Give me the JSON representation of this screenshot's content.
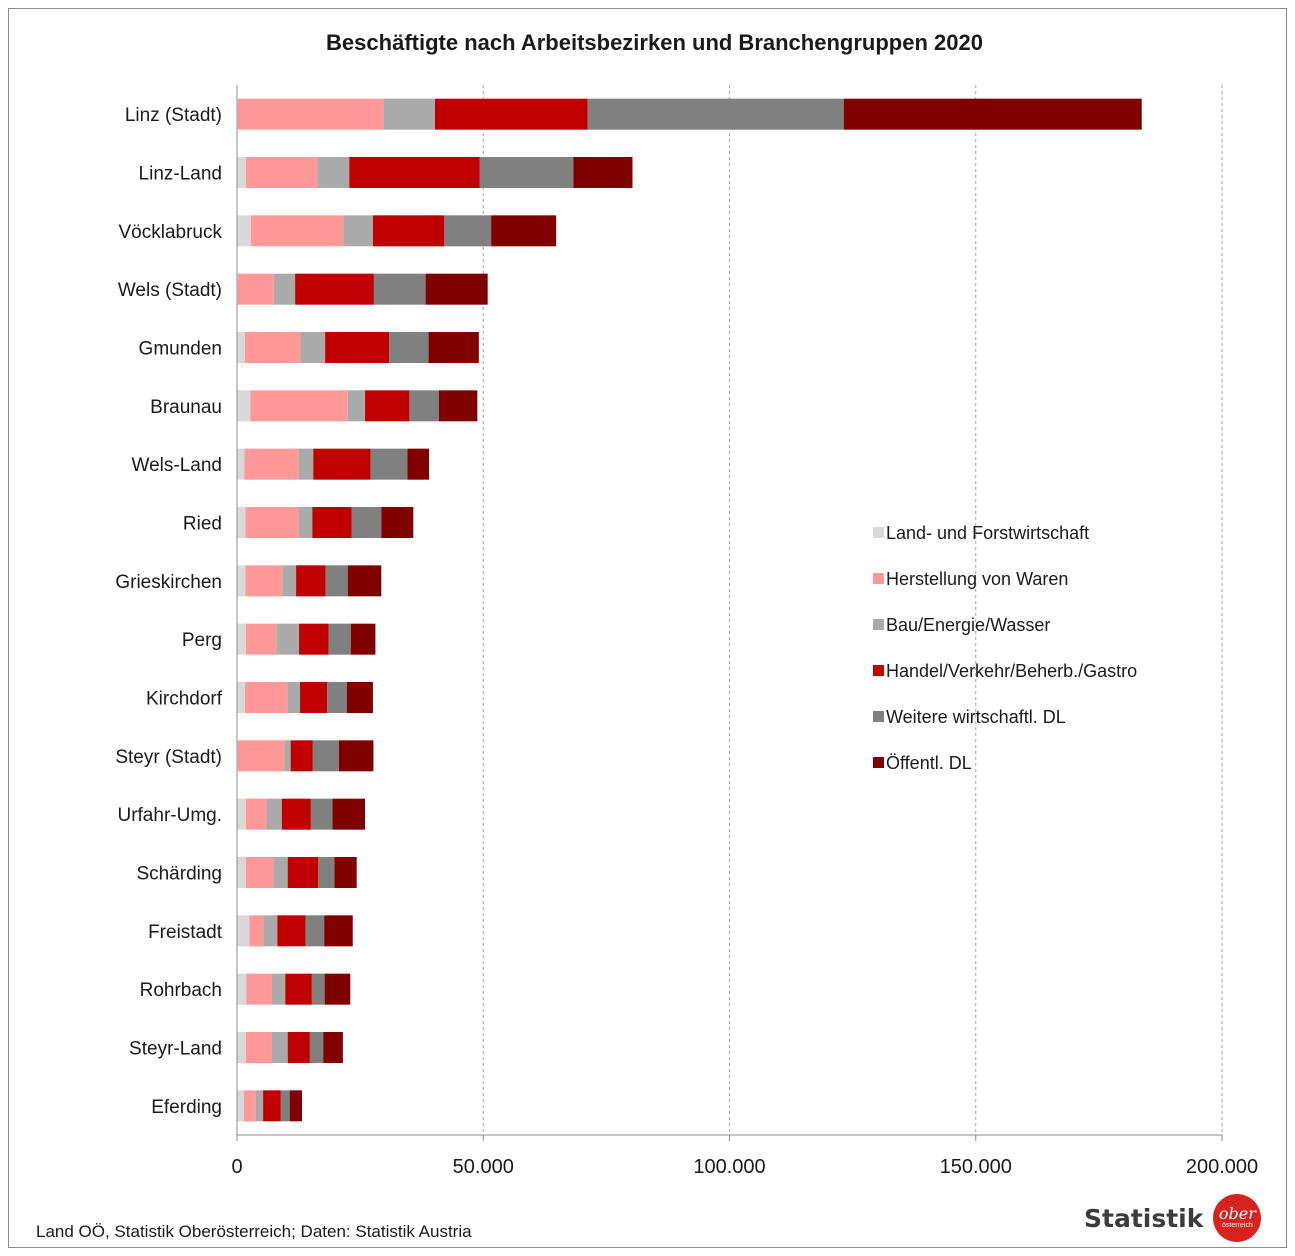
{
  "chart_data": {
    "type": "bar",
    "orientation": "horizontal",
    "stacked": true,
    "title": "Beschäftigte nach Arbeitsbezirken und Branchengruppen 2020",
    "xlabel": "",
    "ylabel": "",
    "xlim": [
      0,
      200000
    ],
    "xticks": [
      0,
      50000,
      100000,
      150000,
      200000
    ],
    "xtick_labels": [
      "0",
      "50.000",
      "100.000",
      "150.000",
      "200.000"
    ],
    "grid": "vertical dashed",
    "legend_position": "right",
    "categories": [
      "Linz (Stadt)",
      "Linz-Land",
      "Vöcklabruck",
      "Wels (Stadt)",
      "Gmunden",
      "Braunau",
      "Wels-Land",
      "Ried",
      "Grieskirchen",
      "Perg",
      "Kirchdorf",
      "Steyr (Stadt)",
      "Urfahr-Umg.",
      "Schärding",
      "Freistadt",
      "Rohrbach",
      "Steyr-Land",
      "Eferding"
    ],
    "series": [
      {
        "name": "Land- und Forstwirtschaft",
        "color": "#d9d9d9",
        "values": [
          200,
          1800,
          2800,
          200,
          1600,
          2700,
          1500,
          1700,
          1700,
          1800,
          1600,
          200,
          1800,
          1800,
          2500,
          1900,
          1800,
          1400
        ]
      },
      {
        "name": "Herstellung von Waren",
        "color": "#ff9999",
        "values": [
          29500,
          14500,
          18800,
          7300,
          11300,
          19800,
          11000,
          10800,
          7500,
          6200,
          8600,
          9400,
          4200,
          5600,
          2900,
          5200,
          5300,
          2400
        ]
      },
      {
        "name": "Bau/Energie/Wasser",
        "color": "#aaaaaa",
        "values": [
          10500,
          6500,
          6000,
          4300,
          5000,
          3500,
          3000,
          2800,
          2800,
          4600,
          2600,
          1300,
          3100,
          2900,
          2800,
          2700,
          3200,
          1500
        ]
      },
      {
        "name": "Handel/Verkehr/Beherb./Gastro",
        "color": "#c00000",
        "values": [
          31000,
          26500,
          14500,
          16000,
          13000,
          9000,
          11600,
          8000,
          6000,
          6000,
          5500,
          4500,
          5900,
          6200,
          5700,
          5400,
          4500,
          3600
        ]
      },
      {
        "name": "Weitere wirtschaftl. DL",
        "color": "#808080",
        "values": [
          52000,
          19000,
          9500,
          10500,
          8000,
          6000,
          7500,
          6000,
          4500,
          4500,
          4000,
          5300,
          4400,
          3300,
          3800,
          2600,
          2700,
          1800
        ]
      },
      {
        "name": "Öffentl. DL",
        "color": "#800000",
        "values": [
          60500,
          12000,
          13200,
          12600,
          10200,
          7800,
          4400,
          6500,
          6800,
          5000,
          5300,
          7000,
          6600,
          4500,
          5800,
          5200,
          4000,
          2500
        ]
      }
    ]
  },
  "footer": {
    "source": "Land OÖ, Statistik Oberösterreich;  Daten: Statistik Austria",
    "logo_text": "Statistik",
    "logo_badge_main": "ober",
    "logo_badge_sub": "österreich"
  }
}
